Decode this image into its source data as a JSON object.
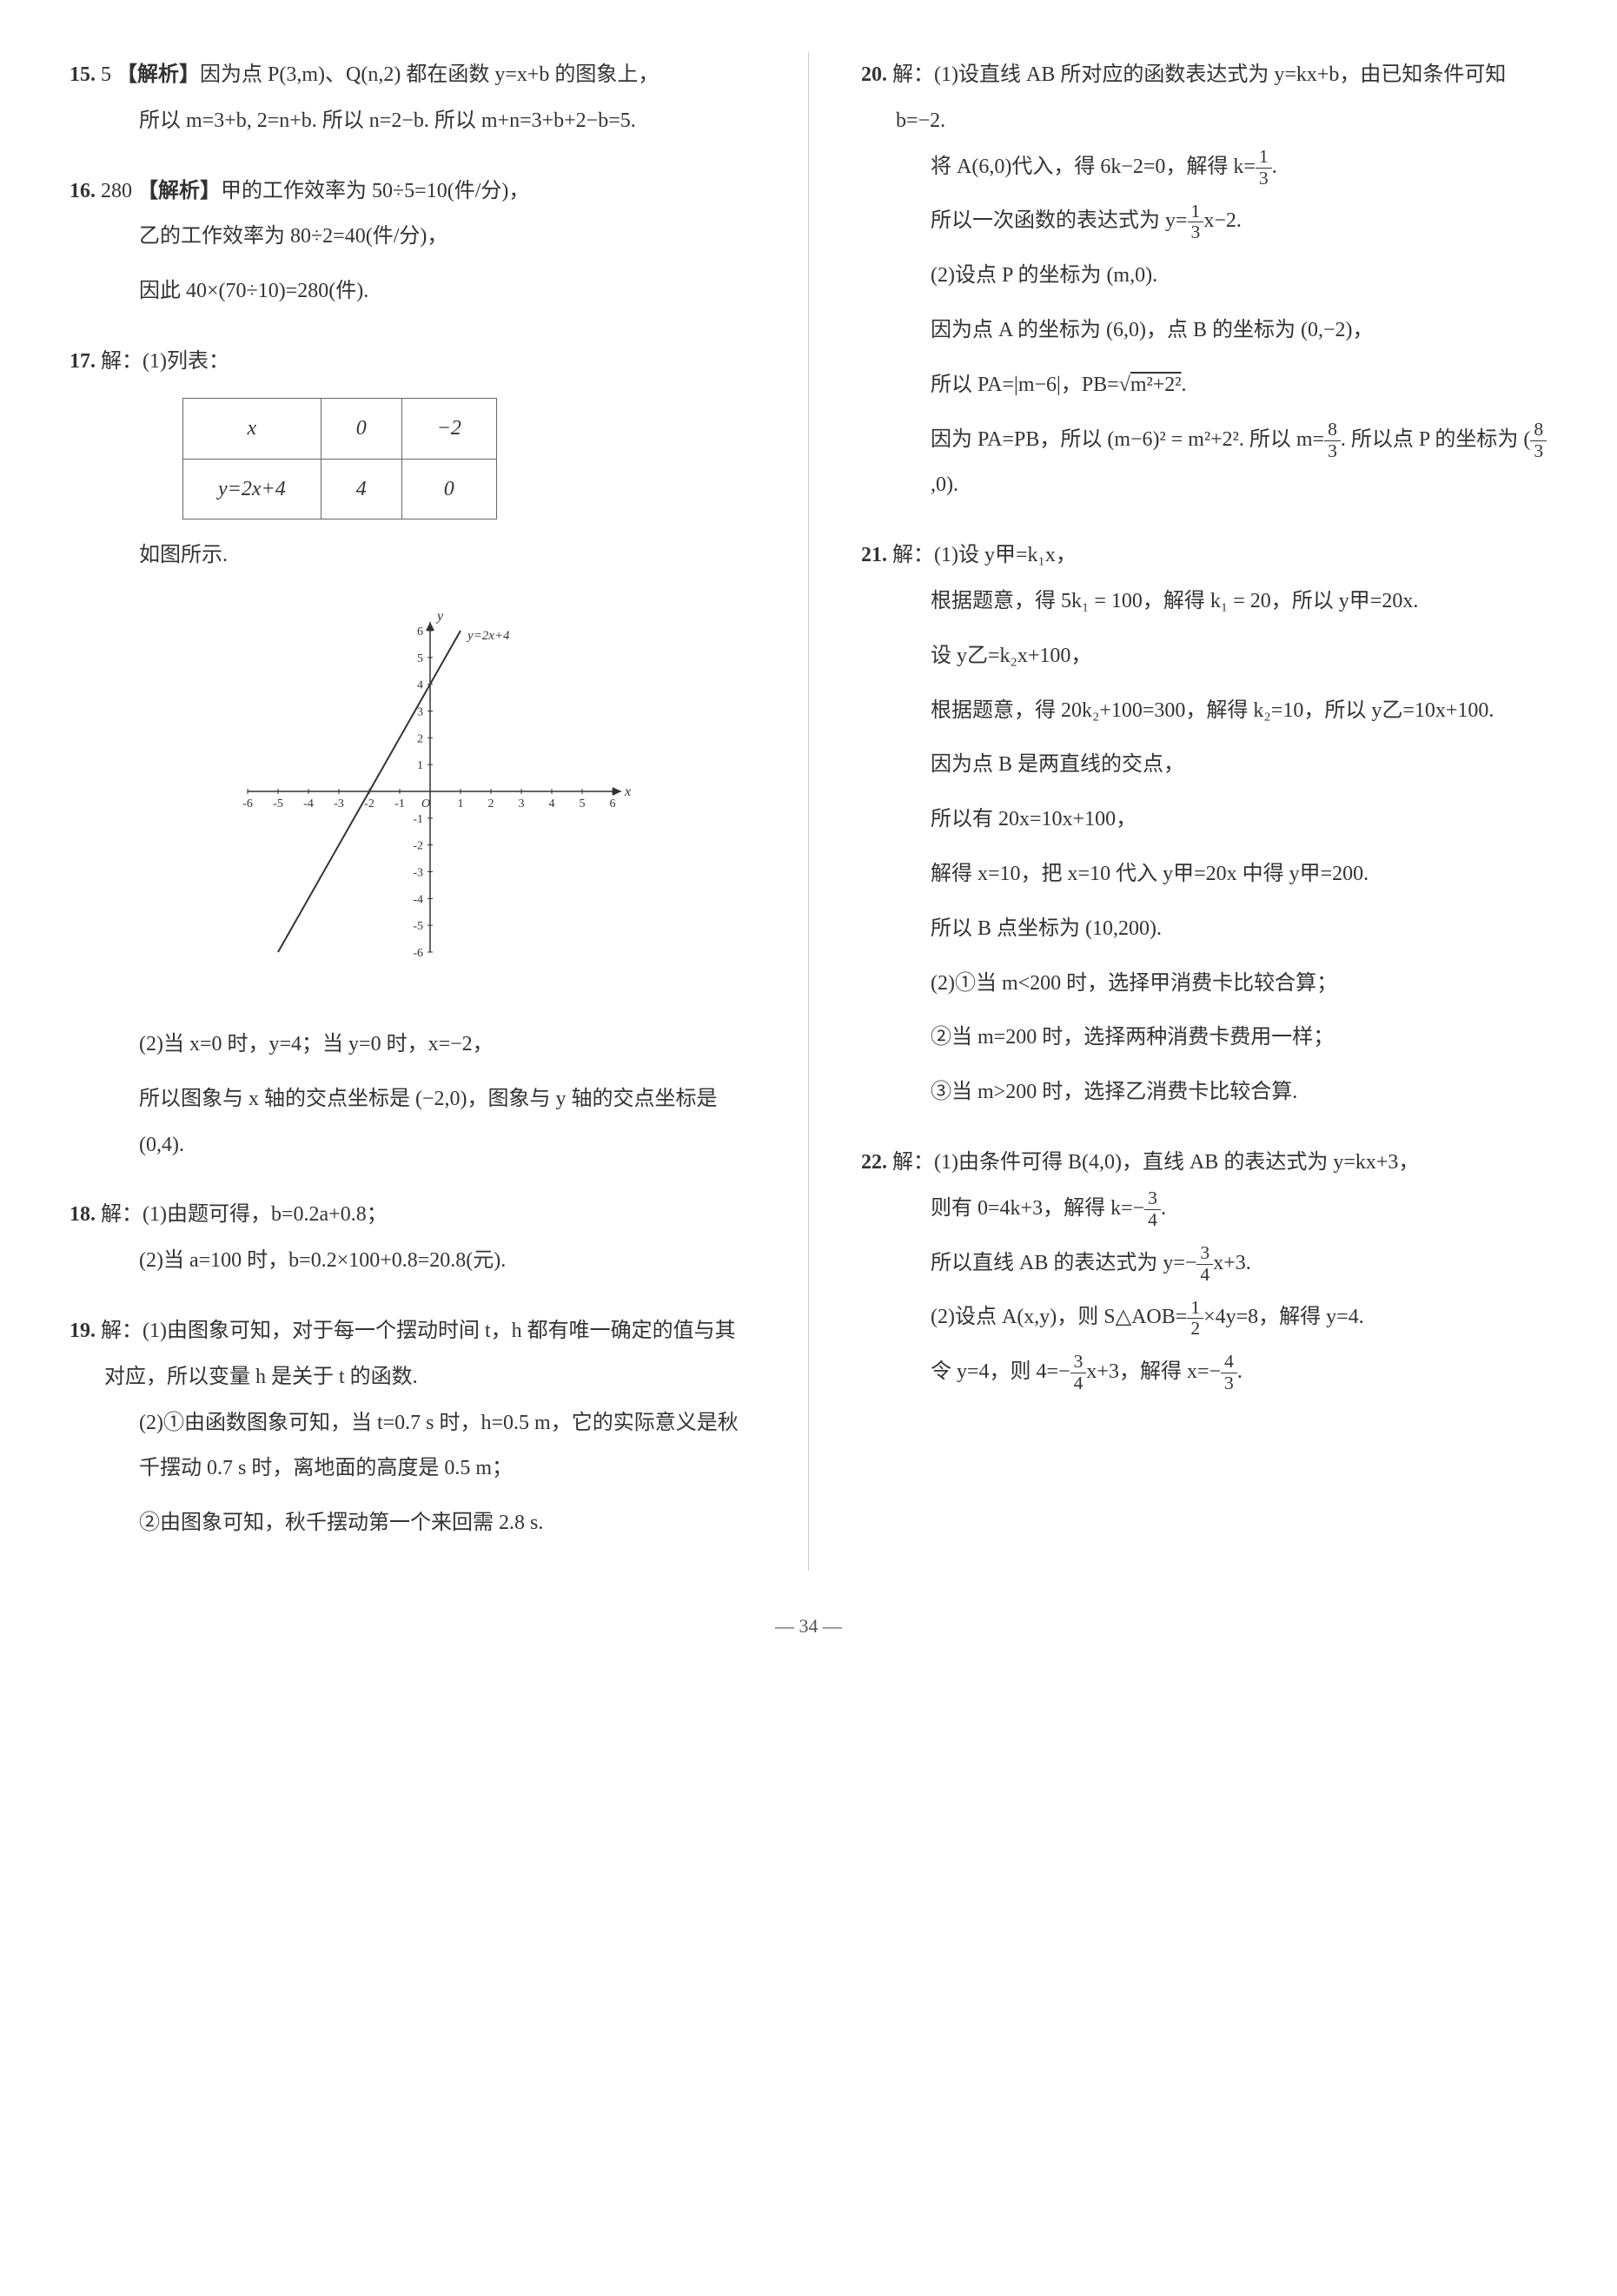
{
  "left": {
    "q15": {
      "num": "15.",
      "ans": "5",
      "tag": "【解析】",
      "line1": "因为点 P(3,m)、Q(n,2) 都在函数 y=x+b 的图象上，",
      "line2": "所以 m=3+b, 2=n+b. 所以 n=2−b. 所以 m+n=3+b+2−b=5."
    },
    "q16": {
      "num": "16.",
      "ans": "280",
      "tag": "【解析】",
      "line1": "甲的工作效率为 50÷5=10(件/分)，",
      "line2": "乙的工作效率为 80÷2=40(件/分)，",
      "line3": "因此 40×(70÷10)=280(件)."
    },
    "q17": {
      "num": "17.",
      "head": "解：(1)列表：",
      "table": {
        "r1": [
          "x",
          "0",
          "−2"
        ],
        "r2": [
          "y=2x+4",
          "4",
          "0"
        ]
      },
      "afterTable": "如图所示.",
      "graph": {
        "label": "y=2x+4",
        "xmin": -6,
        "xmax": 6,
        "ymin": -6,
        "ymax": 6,
        "xticks": [
          -6,
          -5,
          -4,
          -3,
          -2,
          -1,
          0,
          1,
          2,
          3,
          4,
          5,
          6
        ],
        "yticks": [
          -6,
          -5,
          -4,
          -3,
          -2,
          -1,
          1,
          2,
          3,
          4,
          5,
          6
        ],
        "line_p1": [
          -5,
          -6
        ],
        "line_p2": [
          1,
          6
        ],
        "axis_color": "#333333",
        "line_color": "#333333",
        "bg": "#ffffff"
      },
      "p2a": "(2)当 x=0 时，y=4；当 y=0 时，x=−2，",
      "p2b": "所以图象与 x 轴的交点坐标是 (−2,0)，图象与 y 轴的交点坐标是 (0,4)."
    },
    "q18": {
      "num": "18.",
      "head": "解：",
      "p1": "(1)由题可得，b=0.2a+0.8；",
      "p2": "(2)当 a=100 时，b=0.2×100+0.8=20.8(元)."
    },
    "q19": {
      "num": "19.",
      "head": "解：",
      "p1": "(1)由图象可知，对于每一个摆动时间 t，h 都有唯一确定的值与其对应，所以变量 h 是关于 t 的函数.",
      "p2": "(2)①由函数图象可知，当 t=0.7 s 时，h=0.5 m，它的实际意义是秋千摆动 0.7 s 时，离地面的高度是 0.5 m；",
      "p3": "②由图象可知，秋千摆动第一个来回需 2.8 s."
    }
  },
  "right": {
    "q20": {
      "num": "20.",
      "head": "解：",
      "p1": "(1)设直线 AB 所对应的函数表达式为 y=kx+b，由已知条件可知 b=−2.",
      "p2a": "将 A(6,0)代入，得 6k−2=0，解得 k=",
      "p2frac": {
        "n": "1",
        "d": "3"
      },
      "p2b": ".",
      "p3a": "所以一次函数的表达式为 y=",
      "p3frac": {
        "n": "1",
        "d": "3"
      },
      "p3b": "x−2.",
      "p4": "(2)设点 P 的坐标为 (m,0).",
      "p5": "因为点 A 的坐标为 (6,0)，点 B 的坐标为 (0,−2)，",
      "p6a": "所以 PA=|m−6|，PB=",
      "p6sqrt": "m²+2²",
      "p6b": ".",
      "p7a": "因为 PA=PB，所以 (m−6)² = m²+2². 所以 m=",
      "p7frac": {
        "n": "8",
        "d": "3"
      },
      "p7b": ". 所以点 P 的坐标为 (",
      "p7frac2": {
        "n": "8",
        "d": "3"
      },
      "p7c": ",0)."
    },
    "q21": {
      "num": "21.",
      "head": "解：",
      "p1": "(1)设 y甲=k₁x，",
      "p2": "根据题意，得 5k₁ = 100，解得 k₁ = 20，所以 y甲=20x.",
      "p3": "设 y乙=k₂x+100，",
      "p4": "根据题意，得 20k₂+100=300，解得 k₂=10，所以 y乙=10x+100.",
      "p5": "因为点 B 是两直线的交点，",
      "p6": "所以有 20x=10x+100，",
      "p7": "解得 x=10，把 x=10 代入 y甲=20x 中得 y甲=200.",
      "p8": "所以 B 点坐标为 (10,200).",
      "p9": "(2)①当 m<200 时，选择甲消费卡比较合算；",
      "p10": "②当 m=200 时，选择两种消费卡费用一样；",
      "p11": "③当 m>200 时，选择乙消费卡比较合算."
    },
    "q22": {
      "num": "22.",
      "head": "解：",
      "p1": "(1)由条件可得 B(4,0)，直线 AB 的表达式为 y=kx+3，",
      "p2a": "则有 0=4k+3，解得 k=−",
      "p2frac": {
        "n": "3",
        "d": "4"
      },
      "p2b": ".",
      "p3a": "所以直线 AB 的表达式为 y=−",
      "p3frac": {
        "n": "3",
        "d": "4"
      },
      "p3b": "x+3.",
      "p4a": "(2)设点 A(x,y)，则 S△AOB=",
      "p4frac": {
        "n": "1",
        "d": "2"
      },
      "p4b": "×4y=8，解得 y=4.",
      "p5a": "令 y=4，则 4=−",
      "p5frac": {
        "n": "3",
        "d": "4"
      },
      "p5b": "x+3，解得 x=−",
      "p5frac2": {
        "n": "4",
        "d": "3"
      },
      "p5c": "."
    }
  },
  "pageNumber": "— 34 —"
}
